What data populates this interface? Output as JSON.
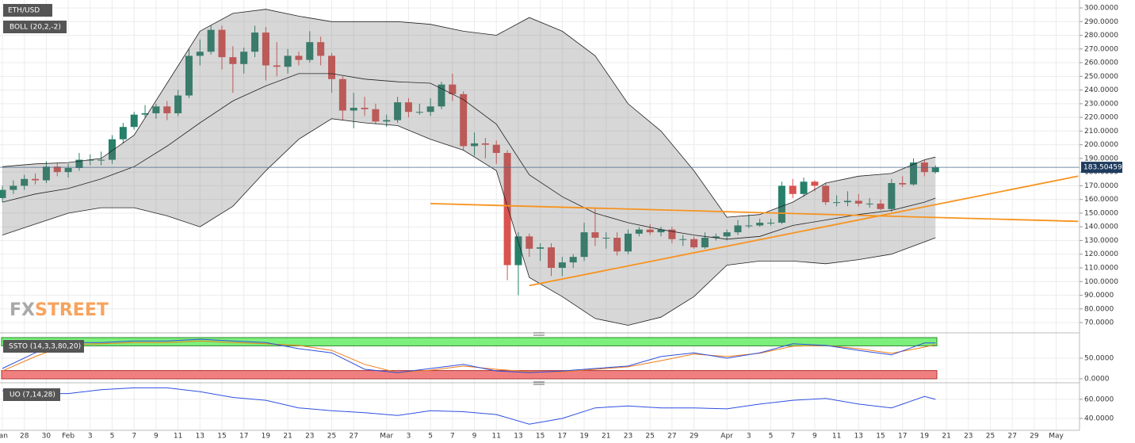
{
  "chart_data": {
    "type": "candlestick",
    "title": "ETH/USD",
    "logo_left": "FX",
    "logo_right": "STREET",
    "open": [
      161,
      167,
      170,
      175,
      174,
      184,
      180,
      183,
      189,
      189,
      189,
      204,
      213,
      222,
      223,
      228,
      223,
      236,
      265,
      268,
      284,
      264,
      259,
      268,
      282,
      258,
      257,
      265,
      262,
      275,
      265,
      248,
      225,
      227,
      226,
      217,
      218,
      231,
      224,
      224,
      228,
      244,
      237,
      199,
      201,
      200,
      194,
      112,
      133,
      124,
      125,
      110,
      114,
      118,
      136,
      132,
      132,
      122,
      135,
      138,
      136,
      138,
      131,
      131,
      125,
      132,
      133,
      136,
      141,
      141,
      143,
      143,
      170,
      164,
      173,
      170,
      158,
      158,
      159,
      157,
      157,
      153,
      172,
      171,
      187,
      180
    ],
    "high": [
      170,
      174,
      178,
      179,
      188,
      187,
      186,
      194,
      193,
      195,
      207,
      216,
      224,
      229,
      230,
      232,
      240,
      270,
      277,
      287,
      287,
      272,
      271,
      287,
      286,
      275,
      270,
      268,
      283,
      279,
      267,
      250,
      238,
      235,
      230,
      222,
      235,
      234,
      230,
      234,
      246,
      252,
      239,
      209,
      205,
      203,
      196,
      136,
      135,
      128,
      128,
      118,
      120,
      143,
      154,
      136,
      136,
      138,
      140,
      142,
      140,
      140,
      134,
      133,
      136,
      135,
      138,
      145,
      149,
      146,
      146,
      173,
      175,
      176,
      174,
      172,
      163,
      166,
      164,
      161,
      160,
      175,
      177,
      190,
      189,
      185
    ],
    "low": [
      158,
      164,
      167,
      171,
      172,
      177,
      176,
      181,
      185,
      185,
      186,
      201,
      211,
      220,
      219,
      218,
      221,
      234,
      258,
      266,
      255,
      238,
      252,
      264,
      247,
      250,
      252,
      258,
      260,
      258,
      238,
      218,
      212,
      221,
      215,
      213,
      216,
      220,
      222,
      221,
      226,
      232,
      196,
      192,
      190,
      186,
      101,
      90,
      118,
      115,
      104,
      104,
      110,
      115,
      126,
      124,
      119,
      120,
      133,
      134,
      133,
      128,
      126,
      124,
      124,
      130,
      130,
      134,
      139,
      140,
      141,
      142,
      161,
      162,
      166,
      156,
      155,
      155,
      155,
      154,
      152,
      151,
      169,
      170,
      177,
      179
    ],
    "close": [
      167,
      170,
      175,
      174,
      184,
      180,
      183,
      189,
      189,
      189,
      204,
      213,
      222,
      223,
      228,
      223,
      236,
      265,
      268,
      284,
      264,
      259,
      268,
      282,
      258,
      257,
      265,
      262,
      275,
      265,
      248,
      225,
      227,
      226,
      217,
      218,
      231,
      224,
      224,
      228,
      244,
      237,
      199,
      201,
      200,
      194,
      112,
      133,
      124,
      125,
      110,
      114,
      118,
      136,
      132,
      132,
      122,
      135,
      138,
      136,
      138,
      131,
      131,
      125,
      132,
      133,
      136,
      141,
      141,
      143,
      143,
      170,
      164,
      173,
      170,
      158,
      158,
      159,
      157,
      157,
      153,
      172,
      171,
      187,
      180,
      183.5
    ],
    "up_color": "#26806a",
    "down_color": "#d9534f",
    "xlim": [
      0,
      98
    ],
    "xticks": [
      {
        "value": 0,
        "label": "Jan"
      },
      {
        "value": 2,
        "label": "28"
      },
      {
        "value": 4,
        "label": "30"
      },
      {
        "value": 6,
        "label": "Feb"
      },
      {
        "value": 8,
        "label": "3"
      },
      {
        "value": 10,
        "label": "5"
      },
      {
        "value": 12,
        "label": "7"
      },
      {
        "value": 14,
        "label": "9"
      },
      {
        "value": 16,
        "label": "11"
      },
      {
        "value": 18,
        "label": "13"
      },
      {
        "value": 20,
        "label": "15"
      },
      {
        "value": 22,
        "label": "17"
      },
      {
        "value": 24,
        "label": "19"
      },
      {
        "value": 26,
        "label": "21"
      },
      {
        "value": 28,
        "label": "23"
      },
      {
        "value": 30,
        "label": "25"
      },
      {
        "value": 32,
        "label": "27"
      },
      {
        "value": 35,
        "label": "Mar"
      },
      {
        "value": 37,
        "label": "3"
      },
      {
        "value": 39,
        "label": "5"
      },
      {
        "value": 41,
        "label": "7"
      },
      {
        "value": 43,
        "label": "9"
      },
      {
        "value": 45,
        "label": "11"
      },
      {
        "value": 47,
        "label": "13"
      },
      {
        "value": 49,
        "label": "15"
      },
      {
        "value": 51,
        "label": "17"
      },
      {
        "value": 53,
        "label": "19"
      },
      {
        "value": 55,
        "label": "21"
      },
      {
        "value": 57,
        "label": "23"
      },
      {
        "value": 59,
        "label": "25"
      },
      {
        "value": 61,
        "label": "27"
      },
      {
        "value": 63,
        "label": "29"
      },
      {
        "value": 66,
        "label": "Apr"
      },
      {
        "value": 68,
        "label": "3"
      },
      {
        "value": 70,
        "label": "5"
      },
      {
        "value": 72,
        "label": "7"
      },
      {
        "value": 74,
        "label": "9"
      },
      {
        "value": 76,
        "label": "11"
      },
      {
        "value": 78,
        "label": "13"
      },
      {
        "value": 80,
        "label": "15"
      },
      {
        "value": 82,
        "label": "17"
      },
      {
        "value": 84,
        "label": "19"
      },
      {
        "value": 86,
        "label": "21"
      },
      {
        "value": 88,
        "label": "23"
      },
      {
        "value": 90,
        "label": "25"
      },
      {
        "value": 92,
        "label": "27"
      },
      {
        "value": 94,
        "label": "29"
      },
      {
        "value": 96,
        "label": "May"
      }
    ],
    "ylim": [
      65.4,
      305.8
    ],
    "yticks": [
      {
        "value": 70,
        "label": "70.0000"
      },
      {
        "value": 80,
        "label": "80.0000"
      },
      {
        "value": 90,
        "label": "90.0000"
      },
      {
        "value": 100,
        "label": "100.0000"
      },
      {
        "value": 110,
        "label": "110.0000"
      },
      {
        "value": 120,
        "label": "120.0000"
      },
      {
        "value": 130,
        "label": "130.0000"
      },
      {
        "value": 140,
        "label": "140.0000"
      },
      {
        "value": 150,
        "label": "150.0000"
      },
      {
        "value": 160,
        "label": "160.0000"
      },
      {
        "value": 170,
        "label": "170.0000"
      },
      {
        "value": 180,
        "label": "180.0000"
      },
      {
        "value": 190,
        "label": "190.0000"
      },
      {
        "value": 200,
        "label": "200.0000"
      },
      {
        "value": 210,
        "label": "210.0000"
      },
      {
        "value": 220,
        "label": "220.0000"
      },
      {
        "value": 230,
        "label": "230.0000"
      },
      {
        "value": 240,
        "label": "240.0000"
      },
      {
        "value": 250,
        "label": "250.0000"
      },
      {
        "value": 260,
        "label": "260.0000"
      },
      {
        "value": 270,
        "label": "270.0000"
      },
      {
        "value": 280,
        "label": "280.0000"
      },
      {
        "value": 290,
        "label": "290.0000"
      },
      {
        "value": 300,
        "label": "300.0000"
      }
    ],
    "grid": true,
    "last_price": 183.50459,
    "bollinger": {
      "name": "BOLL (20,2,-2)",
      "color": "#222222",
      "x": [
        0,
        3,
        6,
        9,
        12,
        15,
        18,
        21,
        24,
        27,
        30,
        33,
        36,
        39,
        42,
        45,
        48,
        51,
        54,
        57,
        60,
        63,
        66,
        69,
        72,
        75,
        78,
        81,
        84,
        85
      ],
      "upper": [
        184,
        186,
        187,
        190,
        207,
        245,
        283,
        296,
        299,
        294,
        290,
        290,
        290,
        288,
        283,
        280,
        293,
        283,
        265,
        230,
        210,
        181,
        147,
        149,
        158,
        172,
        177,
        179,
        189,
        191
      ],
      "middle": [
        158,
        164,
        168,
        175,
        184,
        199,
        216,
        232,
        243,
        252,
        252,
        248,
        246,
        245,
        233,
        215,
        178,
        162,
        150,
        143,
        138,
        134,
        131,
        133,
        141,
        145,
        149,
        152,
        158,
        161
      ],
      "lower": [
        134,
        142,
        150,
        154,
        154,
        148,
        140,
        155,
        181,
        204,
        219,
        216,
        214,
        204,
        196,
        181,
        103,
        89,
        73,
        68,
        74,
        89,
        112,
        115,
        115,
        113,
        116,
        120,
        129,
        132
      ]
    },
    "trendlines": {
      "color": "#f7931e",
      "lines": [
        {
          "x": [
            39,
            98
          ],
          "values": [
            157,
            144
          ]
        },
        {
          "x": [
            48,
            98
          ],
          "values": [
            97,
            177
          ]
        }
      ]
    },
    "stochastic": {
      "name": "SSTO (14,3,3,80,20)",
      "ylim": [
        0,
        100
      ],
      "yticks": [
        {
          "value": 0,
          "label": "0.0000"
        },
        {
          "value": 50,
          "label": "50.0000"
        }
      ],
      "overbought": 80,
      "oversold": 20,
      "x": [
        0,
        3,
        6,
        9,
        12,
        15,
        18,
        21,
        24,
        27,
        30,
        33,
        36,
        39,
        42,
        45,
        48,
        51,
        54,
        57,
        60,
        63,
        66,
        69,
        72,
        75,
        78,
        81,
        84,
        85
      ],
      "k_line": {
        "color": "#2f4fe0",
        "values": [
          25,
          63,
          88,
          88,
          92,
          92,
          96,
          92,
          88,
          73,
          63,
          23,
          15,
          25,
          35,
          19,
          15,
          19,
          25,
          31,
          54,
          63,
          50,
          63,
          85,
          81,
          69,
          58,
          87,
          87
        ]
      },
      "d_line": {
        "color": "#f07d1a",
        "values": [
          19,
          54,
          83,
          85,
          88,
          88,
          92,
          88,
          85,
          81,
          69,
          35,
          15,
          21,
          31,
          23,
          17,
          17,
          23,
          29,
          44,
          60,
          54,
          62,
          79,
          81,
          73,
          62,
          77,
          83
        ]
      }
    },
    "ultimate_oscillator": {
      "name": "UO (7,14,28)",
      "ylim": [
        30,
        74
      ],
      "yticks": [
        {
          "value": 40,
          "label": "40.0000"
        },
        {
          "value": 60,
          "label": "60.0000"
        }
      ],
      "color": "#2f4fe0",
      "x": [
        0,
        3,
        6,
        9,
        12,
        15,
        18,
        21,
        24,
        27,
        30,
        33,
        36,
        39,
        42,
        45,
        48,
        51,
        54,
        57,
        60,
        63,
        66,
        69,
        72,
        75,
        78,
        81,
        84,
        85
      ],
      "values": [
        69,
        66,
        66,
        70,
        72,
        72,
        68,
        62,
        59,
        51,
        48,
        46,
        43,
        48,
        47,
        44,
        34,
        40,
        51,
        53,
        51,
        51,
        50,
        55,
        59,
        61,
        55,
        51,
        63,
        60
      ]
    }
  }
}
